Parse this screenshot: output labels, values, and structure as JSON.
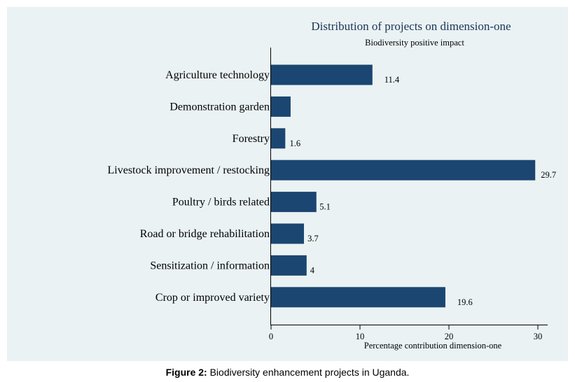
{
  "chart_data": {
    "type": "bar",
    "orientation": "horizontal",
    "title": "Distribution of projects on dimension-one",
    "subtitle": "Biodiversity positive impact",
    "xlabel": "Percentage contribution dimension-one",
    "ylabel": "",
    "categories": [
      "Agriculture technology",
      "Demonstration garden",
      "Forestry",
      "Livestock improvement / restocking",
      "Poultry / birds related",
      "Road or bridge rehabilitation",
      "Sensitization / information",
      "Crop or improved variety"
    ],
    "values": [
      11.4,
      2.2,
      1.6,
      29.7,
      5.1,
      3.7,
      4,
      19.6
    ],
    "value_labels": [
      "11.4",
      "",
      "1.6",
      "29.7",
      "5.1",
      "3.7",
      "4",
      "19.6"
    ],
    "xlim": [
      0,
      30
    ],
    "xticks": [
      "0",
      "10",
      "20",
      "30"
    ],
    "grid": false,
    "legend": "none",
    "bar_color": "#1b4671",
    "background_color": "#eaf2f3"
  },
  "caption": {
    "label": "Figure 2:",
    "text": " Biodiversity enhancement projects in Uganda."
  }
}
